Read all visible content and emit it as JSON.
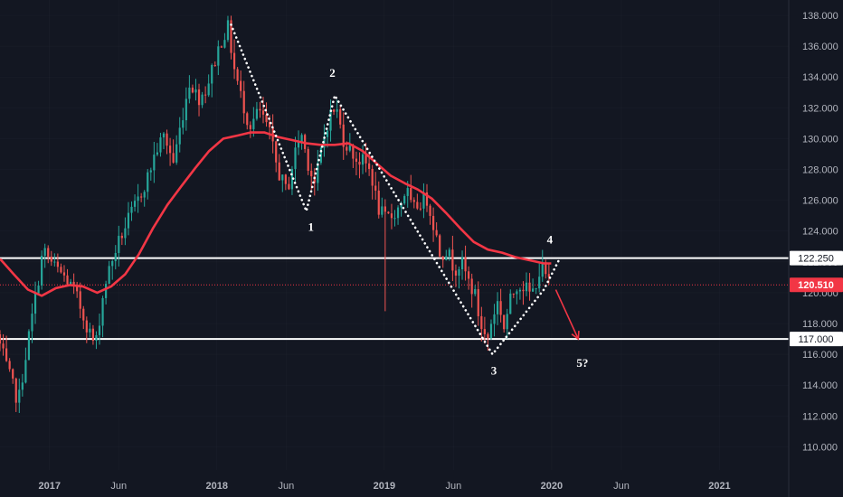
{
  "chart_data": {
    "type": "candlestick",
    "colors": {
      "background": "#131722",
      "up": "#26a69a",
      "down": "#ef5350",
      "ma": "#f23645",
      "level_line": "#ffffff",
      "wave": "#ffffff",
      "forecast_arrow": "#f23645",
      "grid": "#2a2e39"
    },
    "y_axis": {
      "ylim": [
        108.5,
        139.0
      ],
      "ticks": [
        110.0,
        112.0,
        114.0,
        116.0,
        118.0,
        120.0,
        122.0,
        124.0,
        126.0,
        128.0,
        130.0,
        132.0,
        134.0,
        136.0,
        138.0
      ],
      "tick_labels": [
        "110.000",
        "112.000",
        "114.000",
        "116.000",
        "118.000",
        "120.000",
        "122.000",
        "124.000",
        "126.000",
        "128.000",
        "130.000",
        "132.000",
        "134.000",
        "136.000",
        "138.000"
      ]
    },
    "x_axis": {
      "start": "2016-09-15",
      "end": "2021-06-01",
      "ticks": [
        {
          "date": "2017-01-01",
          "label": "2017",
          "bold": true
        },
        {
          "date": "2017-06-01",
          "label": "Jun",
          "bold": false
        },
        {
          "date": "2018-01-01",
          "label": "2018",
          "bold": true
        },
        {
          "date": "2018-06-01",
          "label": "Jun",
          "bold": false
        },
        {
          "date": "2019-01-01",
          "label": "2019",
          "bold": true
        },
        {
          "date": "2019-06-01",
          "label": "Jun",
          "bold": false
        },
        {
          "date": "2020-01-01",
          "label": "2020",
          "bold": true
        },
        {
          "date": "2020-06-01",
          "label": "Jun",
          "bold": false
        },
        {
          "date": "2021-01-01",
          "label": "2021",
          "bold": true
        }
      ]
    },
    "price_path": [
      [
        "2016-09-15",
        117.3
      ],
      [
        "2016-10-10",
        114.8
      ],
      [
        "2016-11-01",
        112.9
      ],
      [
        "2016-11-20",
        116.5
      ],
      [
        "2016-12-10",
        120.0
      ],
      [
        "2016-12-25",
        122.8
      ],
      [
        "2017-01-15",
        121.8
      ],
      [
        "2017-02-10",
        121.0
      ],
      [
        "2017-03-05",
        120.0
      ],
      [
        "2017-03-25",
        118.3
      ],
      [
        "2017-04-18",
        116.5
      ],
      [
        "2017-05-08",
        120.5
      ],
      [
        "2017-06-01",
        122.8
      ],
      [
        "2017-06-25",
        124.5
      ],
      [
        "2017-07-20",
        126.0
      ],
      [
        "2017-08-10",
        127.5
      ],
      [
        "2017-08-28",
        129.2
      ],
      [
        "2017-09-15",
        130.2
      ],
      [
        "2017-10-05",
        128.5
      ],
      [
        "2017-10-25",
        131.5
      ],
      [
        "2017-11-10",
        133.8
      ],
      [
        "2017-11-28",
        132.6
      ],
      [
        "2017-12-15",
        133.2
      ],
      [
        "2018-01-01",
        134.8
      ],
      [
        "2018-01-15",
        136.2
      ],
      [
        "2018-02-01",
        137.2
      ],
      [
        "2018-02-15",
        134.5
      ],
      [
        "2018-03-01",
        132.8
      ],
      [
        "2018-03-20",
        130.8
      ],
      [
        "2018-04-10",
        131.8
      ],
      [
        "2018-05-01",
        130.6
      ],
      [
        "2018-05-20",
        128.0
      ],
      [
        "2018-06-10",
        126.5
      ],
      [
        "2018-06-25",
        128.8
      ],
      [
        "2018-07-10",
        130.5
      ],
      [
        "2018-07-25",
        128.5
      ],
      [
        "2018-08-10",
        127.0
      ],
      [
        "2018-08-25",
        129.5
      ],
      [
        "2018-09-10",
        131.5
      ],
      [
        "2018-09-25",
        132.0
      ],
      [
        "2018-10-10",
        130.0
      ],
      [
        "2018-10-25",
        129.3
      ],
      [
        "2018-11-10",
        128.6
      ],
      [
        "2018-11-25",
        128.5
      ],
      [
        "2018-12-10",
        127.8
      ],
      [
        "2018-12-25",
        125.5
      ],
      [
        "2019-01-10",
        124.8
      ],
      [
        "2019-01-25",
        125.0
      ],
      [
        "2019-02-10",
        125.6
      ],
      [
        "2019-02-25",
        126.8
      ],
      [
        "2019-03-10",
        125.3
      ],
      [
        "2019-03-25",
        125.8
      ],
      [
        "2019-04-10",
        126.2
      ],
      [
        "2019-04-25",
        124.5
      ],
      [
        "2019-05-10",
        122.5
      ],
      [
        "2019-05-25",
        122.8
      ],
      [
        "2019-06-10",
        121.5
      ],
      [
        "2019-06-25",
        122.0
      ],
      [
        "2019-07-10",
        120.8
      ],
      [
        "2019-07-25",
        119.8
      ],
      [
        "2019-08-05",
        118.0
      ],
      [
        "2019-08-20",
        116.8
      ],
      [
        "2019-09-01",
        118.5
      ],
      [
        "2019-09-15",
        119.6
      ],
      [
        "2019-09-25",
        117.6
      ],
      [
        "2019-10-10",
        119.5
      ],
      [
        "2019-10-25",
        120.6
      ],
      [
        "2019-11-10",
        120.4
      ],
      [
        "2019-11-25",
        119.8
      ],
      [
        "2019-12-10",
        121.2
      ],
      [
        "2019-12-20",
        121.6
      ],
      [
        "2019-12-31",
        120.6
      ]
    ],
    "moving_average": [
      [
        "2016-09-15",
        122.2
      ],
      [
        "2016-10-15",
        121.2
      ],
      [
        "2016-11-15",
        120.2
      ],
      [
        "2016-12-15",
        119.8
      ],
      [
        "2017-01-15",
        120.3
      ],
      [
        "2017-02-15",
        120.5
      ],
      [
        "2017-03-15",
        120.4
      ],
      [
        "2017-04-15",
        120.0
      ],
      [
        "2017-05-15",
        120.4
      ],
      [
        "2017-06-15",
        121.2
      ],
      [
        "2017-07-15",
        122.5
      ],
      [
        "2017-08-15",
        124.2
      ],
      [
        "2017-09-15",
        125.7
      ],
      [
        "2017-10-15",
        126.9
      ],
      [
        "2017-11-15",
        128.1
      ],
      [
        "2017-12-15",
        129.2
      ],
      [
        "2018-01-15",
        130.0
      ],
      [
        "2018-02-15",
        130.2
      ],
      [
        "2018-03-15",
        130.4
      ],
      [
        "2018-04-15",
        130.4
      ],
      [
        "2018-05-15",
        130.1
      ],
      [
        "2018-06-15",
        129.9
      ],
      [
        "2018-07-15",
        129.7
      ],
      [
        "2018-08-15",
        129.6
      ],
      [
        "2018-09-15",
        129.6
      ],
      [
        "2018-10-15",
        129.7
      ],
      [
        "2018-11-15",
        129.2
      ],
      [
        "2018-12-15",
        128.4
      ],
      [
        "2019-01-15",
        127.6
      ],
      [
        "2019-02-15",
        127.1
      ],
      [
        "2019-03-15",
        126.7
      ],
      [
        "2019-04-15",
        126.1
      ],
      [
        "2019-05-15",
        125.2
      ],
      [
        "2019-06-15",
        124.2
      ],
      [
        "2019-07-15",
        123.3
      ],
      [
        "2019-08-15",
        122.8
      ],
      [
        "2019-09-15",
        122.6
      ],
      [
        "2019-10-15",
        122.3
      ],
      [
        "2019-11-15",
        122.1
      ],
      [
        "2019-12-15",
        121.9
      ],
      [
        "2019-12-31",
        121.9
      ]
    ],
    "horizontal_levels": [
      {
        "price": 122.25,
        "label": "122.250",
        "style": "solid",
        "tag_bg": "#ffffff",
        "tag_fg": "#131722"
      },
      {
        "price": 117.0,
        "label": "117.000",
        "style": "solid",
        "tag_bg": "#ffffff",
        "tag_fg": "#131722"
      },
      {
        "price": 120.51,
        "label": "120.510",
        "style": "dotted",
        "tag_bg": "#f23645",
        "tag_fg": "#ffffff"
      }
    ],
    "wave_path": [
      [
        "2018-02-01",
        137.4
      ],
      [
        "2018-07-15",
        125.3
      ],
      [
        "2018-09-15",
        132.8
      ],
      [
        "2019-08-25",
        116.0
      ],
      [
        "2019-12-15",
        120.2
      ],
      [
        "2020-01-20",
        122.3
      ]
    ],
    "wave_labels": [
      {
        "text": "1",
        "date": "2018-07-25",
        "price": 124.0
      },
      {
        "text": "2",
        "date": "2018-09-10",
        "price": 134.0
      },
      {
        "text": "3",
        "date": "2019-08-28",
        "price": 114.7
      },
      {
        "text": "4",
        "date": "2019-12-28",
        "price": 123.2
      },
      {
        "text": "5?",
        "date": "2020-03-08",
        "price": 115.2
      }
    ],
    "forecast_arrow": {
      "from": [
        "2020-01-10",
        120.2
      ],
      "to": [
        "2020-02-28",
        117.0
      ]
    }
  }
}
